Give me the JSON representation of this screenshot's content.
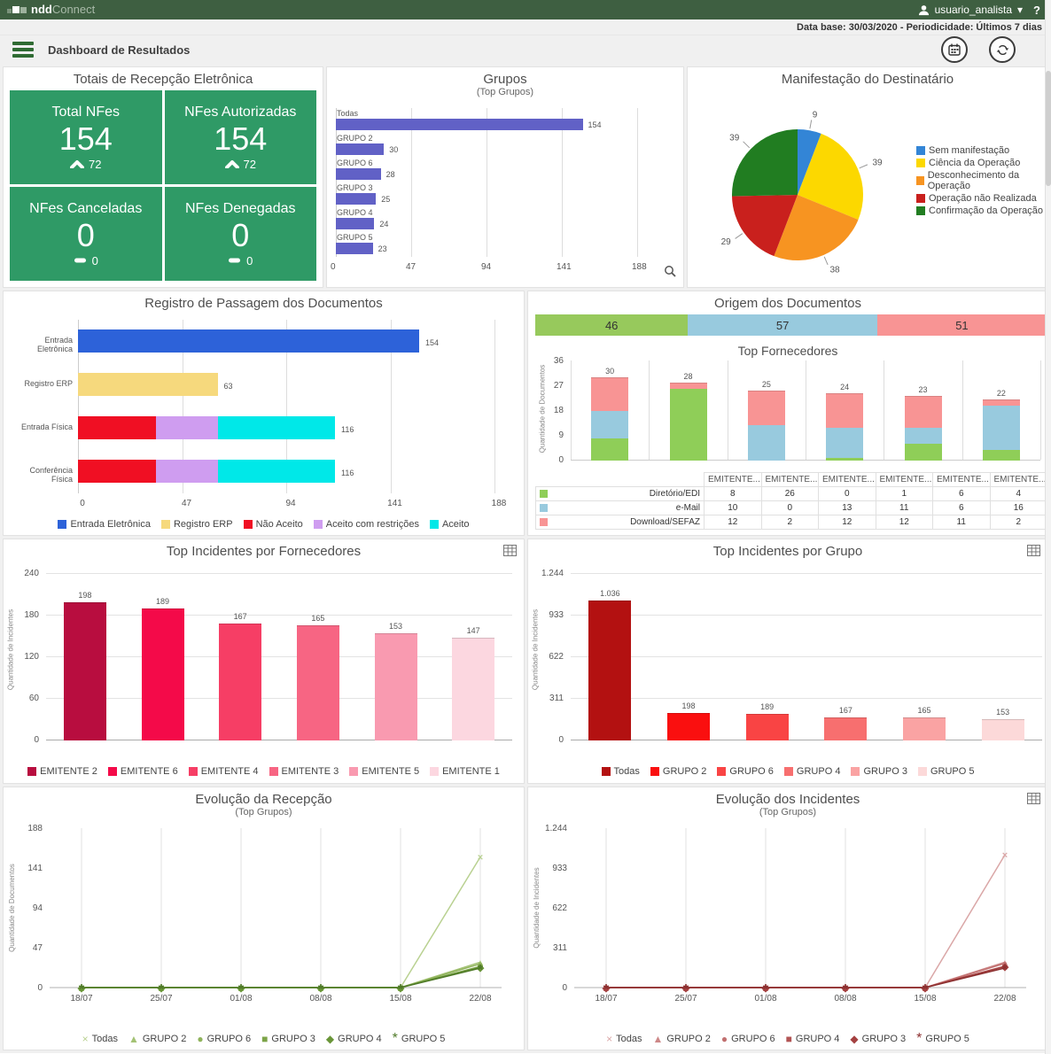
{
  "app": {
    "brand_bold": "ndd",
    "brand_light": "Connect",
    "user_label": "usuario_analista",
    "user_caret": "▾",
    "help_label": "?"
  },
  "infobar": {
    "text": "Data base: 30/03/2020 - Periodicidade: Últimos 7 dias"
  },
  "toolbar": {
    "title": "Dashboard de Resultados"
  },
  "totais": {
    "title": "Totais de Recepção Eletrônica",
    "tile_color": "#2f9a66",
    "tiles": [
      {
        "label": "Total NFes",
        "value": "154",
        "delta": "72",
        "trend": "up"
      },
      {
        "label": "NFes Autorizadas",
        "value": "154",
        "delta": "72",
        "trend": "up"
      },
      {
        "label": "NFes Canceladas",
        "value": "0",
        "delta": "0",
        "trend": "flat"
      },
      {
        "label": "NFes Denegadas",
        "value": "0",
        "delta": "0",
        "trend": "flat"
      }
    ]
  },
  "chart_data": {
    "grupos": {
      "type": "hbar",
      "title": "Grupos",
      "subtitle": "(Top Grupos)",
      "categories": [
        "Todas",
        "GRUPO 2",
        "GRUPO 6",
        "GRUPO 3",
        "GRUPO 4",
        "GRUPO 5"
      ],
      "values": [
        154,
        30,
        28,
        25,
        24,
        23
      ],
      "value_labels": [
        "154",
        "30",
        "28",
        "25",
        "24",
        "23"
      ],
      "bar_color": "#6161c6",
      "xlim": [
        0,
        188
      ],
      "xticks": [
        [
          0,
          "0"
        ],
        [
          47,
          "47"
        ],
        [
          94,
          "94"
        ],
        [
          141,
          "141"
        ],
        [
          188,
          "188"
        ]
      ]
    },
    "manifestacao": {
      "type": "pie",
      "title": "Manifestação do Destinatário",
      "labels": [
        "Sem manifestação",
        "Ciência da Operação",
        "Desconhecimento da Operação",
        "Operação não Realizada",
        "Confirmação da Operação"
      ],
      "values": [
        9,
        39,
        38,
        29,
        39
      ],
      "value_labels": [
        "9",
        "39",
        "38",
        "29",
        "39"
      ],
      "colors": [
        "#3385d6",
        "#fcd800",
        "#f79421",
        "#c9201d",
        "#217d21"
      ],
      "legend_position": "right"
    },
    "registro": {
      "type": "hstack",
      "title": "Registro de Passagem dos Documentos",
      "categories": [
        "Entrada Eletrônica",
        "Registro ERP",
        "Entrada Física",
        "Conferência Física"
      ],
      "series": [
        {
          "name": "Entrada Eletrônica",
          "color": "#2d62d9",
          "values": [
            154,
            0,
            0,
            0
          ]
        },
        {
          "name": "Registro ERP",
          "color": "#f6d97d",
          "values": [
            0,
            63,
            0,
            0
          ]
        },
        {
          "name": "Não Aceito",
          "color": "#f00f23",
          "values": [
            0,
            0,
            35,
            35
          ]
        },
        {
          "name": "Aceito com restrições",
          "color": "#cf9df0",
          "values": [
            0,
            0,
            28,
            28
          ]
        },
        {
          "name": "Aceito",
          "color": "#00e8e8",
          "values": [
            0,
            0,
            53,
            53
          ]
        }
      ],
      "totals": [
        "154",
        "63",
        "116",
        "116"
      ],
      "xlim": [
        0,
        188
      ],
      "xticks": [
        [
          0,
          "0"
        ],
        [
          47,
          "47"
        ],
        [
          94,
          "94"
        ],
        [
          141,
          "141"
        ],
        [
          188,
          "188"
        ]
      ]
    },
    "origem": {
      "type": "hstack_single",
      "title": "Origem dos Documentos",
      "segments": [
        {
          "label": "46",
          "value": 46,
          "color": "#97c95c"
        },
        {
          "label": "57",
          "value": 57,
          "color": "#98cade"
        },
        {
          "label": "51",
          "value": 51,
          "color": "#f89494"
        }
      ]
    },
    "fornecedores": {
      "type": "stackcol",
      "title": "Top Fornecedores",
      "ylabel": "Quantidade de Documentos",
      "categories": [
        "EMITENTE...",
        "EMITENTE...",
        "EMITENTE...",
        "EMITENTE...",
        "EMITENTE...",
        "EMITENTE..."
      ],
      "series": [
        {
          "name": "Diretório/EDI",
          "color": "#8fce58",
          "values": [
            8,
            26,
            0,
            1,
            6,
            4
          ]
        },
        {
          "name": "e-Mail",
          "color": "#98cade",
          "values": [
            10,
            0,
            13,
            11,
            6,
            16
          ]
        },
        {
          "name": "Download/SEFAZ",
          "color": "#f89494",
          "values": [
            12,
            2,
            12,
            12,
            11,
            2
          ]
        }
      ],
      "totals": [
        "30",
        "28",
        "25",
        "24",
        "23",
        "22"
      ],
      "ylim": [
        0,
        36
      ],
      "yticks": [
        [
          0,
          "0"
        ],
        [
          9,
          "9"
        ],
        [
          18,
          "18"
        ],
        [
          27,
          "27"
        ],
        [
          36,
          "36"
        ]
      ]
    },
    "incid_fornecedores": {
      "type": "bar",
      "title": "Top Incidentes por Fornecedores",
      "ylabel": "Quantidade de Incidentes",
      "categories": [
        "EMITENTE 2",
        "EMITENTE 6",
        "EMITENTE 4",
        "EMITENTE 3",
        "EMITENTE 5",
        "EMITENTE 1"
      ],
      "values": [
        198,
        189,
        167,
        165,
        153,
        147
      ],
      "value_labels": [
        "198",
        "189",
        "167",
        "165",
        "153",
        "147"
      ],
      "colors": [
        "#b80d3f",
        "#f40a49",
        "#f63e65",
        "#f76583",
        "#f99ab0",
        "#fcd7e0"
      ],
      "ylim": [
        0,
        240
      ],
      "yticks": [
        [
          0,
          "0"
        ],
        [
          60,
          "60"
        ],
        [
          120,
          "120"
        ],
        [
          180,
          "180"
        ],
        [
          240,
          "240"
        ]
      ]
    },
    "incid_grupo": {
      "type": "bar",
      "title": "Top Incidentes por Grupo",
      "ylabel": "Quantidade de Incidentes",
      "categories": [
        "Todas",
        "GRUPO 2",
        "GRUPO 6",
        "GRUPO 4",
        "GRUPO 3",
        "GRUPO 5"
      ],
      "values": [
        1036,
        198,
        189,
        167,
        165,
        153
      ],
      "value_labels": [
        "1.036",
        "198",
        "189",
        "167",
        "165",
        "153"
      ],
      "colors": [
        "#b31111",
        "#fa0f0f",
        "#f94444",
        "#f76f6f",
        "#faa3a3",
        "#fcd9d9"
      ],
      "ylim": [
        0,
        1244
      ],
      "yticks": [
        [
          0,
          "0"
        ],
        [
          311,
          "311"
        ],
        [
          622,
          "622"
        ],
        [
          933,
          "933"
        ],
        [
          1244,
          "1.244"
        ]
      ]
    },
    "evol_recepcao": {
      "type": "line",
      "title": "Evolução da Recepção",
      "subtitle": "(Top Grupos)",
      "ylabel": "Quantidade de Documentos",
      "x": [
        "18/07",
        "25/07",
        "01/08",
        "08/08",
        "15/08",
        "22/08"
      ],
      "ylim": [
        0,
        188
      ],
      "yticks": [
        [
          0,
          "0"
        ],
        [
          47,
          "47"
        ],
        [
          94,
          "94"
        ],
        [
          141,
          "141"
        ],
        [
          188,
          "188"
        ]
      ],
      "series": [
        {
          "name": "Todas",
          "marker": "×",
          "color": "#b9d191",
          "values": [
            0,
            0,
            0,
            0,
            0,
            154
          ]
        },
        {
          "name": "GRUPO 2",
          "marker": "▲",
          "color": "#a3c274",
          "values": [
            0,
            0,
            0,
            0,
            0,
            30
          ]
        },
        {
          "name": "GRUPO 6",
          "marker": "●",
          "color": "#8fb35b",
          "values": [
            0,
            0,
            0,
            0,
            0,
            28
          ]
        },
        {
          "name": "GRUPO 3",
          "marker": "■",
          "color": "#7ca448",
          "values": [
            0,
            0,
            0,
            0,
            0,
            25
          ]
        },
        {
          "name": "GRUPO 4",
          "marker": "◆",
          "color": "#699538",
          "values": [
            0,
            0,
            0,
            0,
            0,
            24
          ]
        },
        {
          "name": "GRUPO 5",
          "marker": "*",
          "color": "#4f7a28",
          "values": [
            0,
            0,
            0,
            0,
            0,
            23
          ]
        }
      ]
    },
    "evol_incidentes": {
      "type": "line",
      "title": "Evolução dos Incidentes",
      "subtitle": "(Top Grupos)",
      "ylabel": "Quantidade de Incidentes",
      "x": [
        "18/07",
        "25/07",
        "01/08",
        "08/08",
        "15/08",
        "22/08"
      ],
      "ylim": [
        0,
        1244
      ],
      "yticks": [
        [
          0,
          "0"
        ],
        [
          311,
          "311"
        ],
        [
          622,
          "622"
        ],
        [
          933,
          "933"
        ],
        [
          1244,
          "1.244"
        ]
      ],
      "series": [
        {
          "name": "Todas",
          "marker": "×",
          "color": "#daa7a7",
          "values": [
            0,
            0,
            0,
            0,
            0,
            1036
          ]
        },
        {
          "name": "GRUPO 2",
          "marker": "▲",
          "color": "#cd8888",
          "values": [
            0,
            0,
            0,
            0,
            0,
            198
          ]
        },
        {
          "name": "GRUPO 6",
          "marker": "●",
          "color": "#c17070",
          "values": [
            0,
            0,
            0,
            0,
            0,
            189
          ]
        },
        {
          "name": "GRUPO 4",
          "marker": "■",
          "color": "#b25454",
          "values": [
            0,
            0,
            0,
            0,
            0,
            167
          ]
        },
        {
          "name": "GRUPO 3",
          "marker": "◆",
          "color": "#a44141",
          "values": [
            0,
            0,
            0,
            0,
            0,
            165
          ]
        },
        {
          "name": "GRUPO 5",
          "marker": "*",
          "color": "#8c3030",
          "values": [
            0,
            0,
            0,
            0,
            0,
            153
          ]
        }
      ]
    }
  }
}
